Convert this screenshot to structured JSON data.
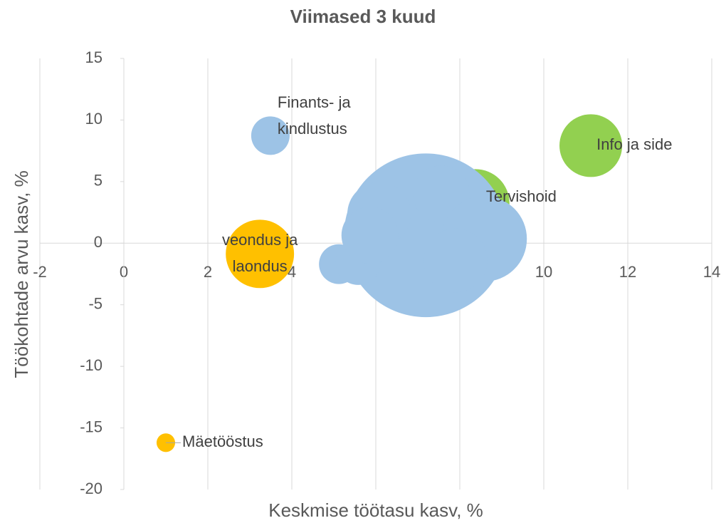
{
  "chart_data": {
    "type": "bubble",
    "title": "Viimased 3 kuud",
    "x_label": "Keskmise töötasu kasv, %",
    "y_label": "Töökohtade arvu kasv, %",
    "xlim": [
      -2,
      14
    ],
    "xticks": [
      -2,
      0,
      2,
      4,
      6,
      8,
      10,
      12,
      14
    ],
    "ylim": [
      -20,
      15
    ],
    "yticks": [
      -20,
      -15,
      -10,
      -5,
      0,
      5,
      10,
      15
    ],
    "grid": "x",
    "series": [
      {
        "color": "#ffc000",
        "x": [
          3.24,
          1.0
        ],
        "values": [
          -0.87,
          -16.2
        ],
        "sizes": [
          23,
          1.7
        ],
        "labels": [
          [
            "veondus ja",
            "laondus"
          ],
          [
            "Mäetööstus"
          ]
        ]
      },
      {
        "color": "#92d050",
        "x": [
          11.12,
          8.37
        ],
        "values": [
          7.92,
          3.24
        ],
        "sizes": [
          19.4,
          23
        ],
        "labels": [
          [
            "Info ja side"
          ],
          [
            "Tervishoid"
          ]
        ]
      },
      {
        "color": "#9dc3e6",
        "x": [
          3.49,
          7.19,
          7.56,
          6.08,
          8.58,
          7.9,
          5.12,
          5.58,
          5.86
        ],
        "values": [
          8.73,
          0.64,
          4.0,
          2.37,
          0.35,
          -1.4,
          -1.7,
          -1.56,
          0.64
        ],
        "sizes": [
          7.3,
          132,
          16,
          20,
          36,
          20,
          7.8,
          10,
          16
        ],
        "labels": [
          [
            "Finants- ja",
            "kindlustus"
          ],
          null,
          null,
          null,
          null,
          null,
          null,
          null,
          null
        ]
      }
    ]
  }
}
